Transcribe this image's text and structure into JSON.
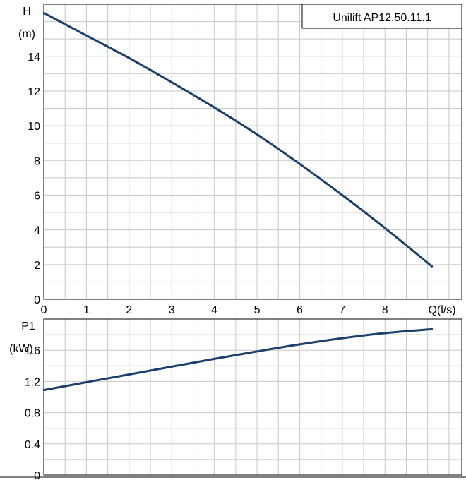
{
  "title": "Unilift AP12.50.11.1",
  "colors": {
    "curve": "#1a3f6e",
    "grid": "#c8c8c8",
    "frame": "#000000"
  },
  "chart_data": [
    {
      "type": "line",
      "name": "head-curve",
      "title": "Unilift AP12.50.11.1",
      "xlabel": "Q(l/s)",
      "ylabel_line1": "H",
      "ylabel_line2": "(m)",
      "xlim": [
        0,
        9.8
      ],
      "ylim": [
        0,
        17
      ],
      "xticks": [
        "0",
        "1",
        "2",
        "3",
        "4",
        "5",
        "6",
        "7",
        "8"
      ],
      "yticks": [
        "0",
        "2",
        "4",
        "6",
        "8",
        "10",
        "12",
        "14"
      ],
      "grid": true,
      "series": [
        {
          "x": [
            0,
            1,
            2,
            3,
            4,
            5,
            6,
            7,
            8,
            9.1
          ],
          "y": [
            16.5,
            15.2,
            13.9,
            12.5,
            11.05,
            9.5,
            7.8,
            6.0,
            4.1,
            1.9
          ]
        }
      ]
    },
    {
      "type": "line",
      "name": "power-curve",
      "ylabel_line1": "P1",
      "ylabel_line2": "(kW)",
      "xlim": [
        0,
        9.8
      ],
      "ylim": [
        0,
        2.0
      ],
      "yticks": [
        "0",
        "0.4",
        "0.8",
        "1.2",
        "1.6"
      ],
      "grid": true,
      "series": [
        {
          "x": [
            0,
            1,
            2,
            3,
            4,
            5,
            6,
            7,
            8,
            9.1
          ],
          "y": [
            1.09,
            1.19,
            1.29,
            1.39,
            1.49,
            1.585,
            1.675,
            1.755,
            1.82,
            1.87
          ]
        }
      ]
    }
  ]
}
